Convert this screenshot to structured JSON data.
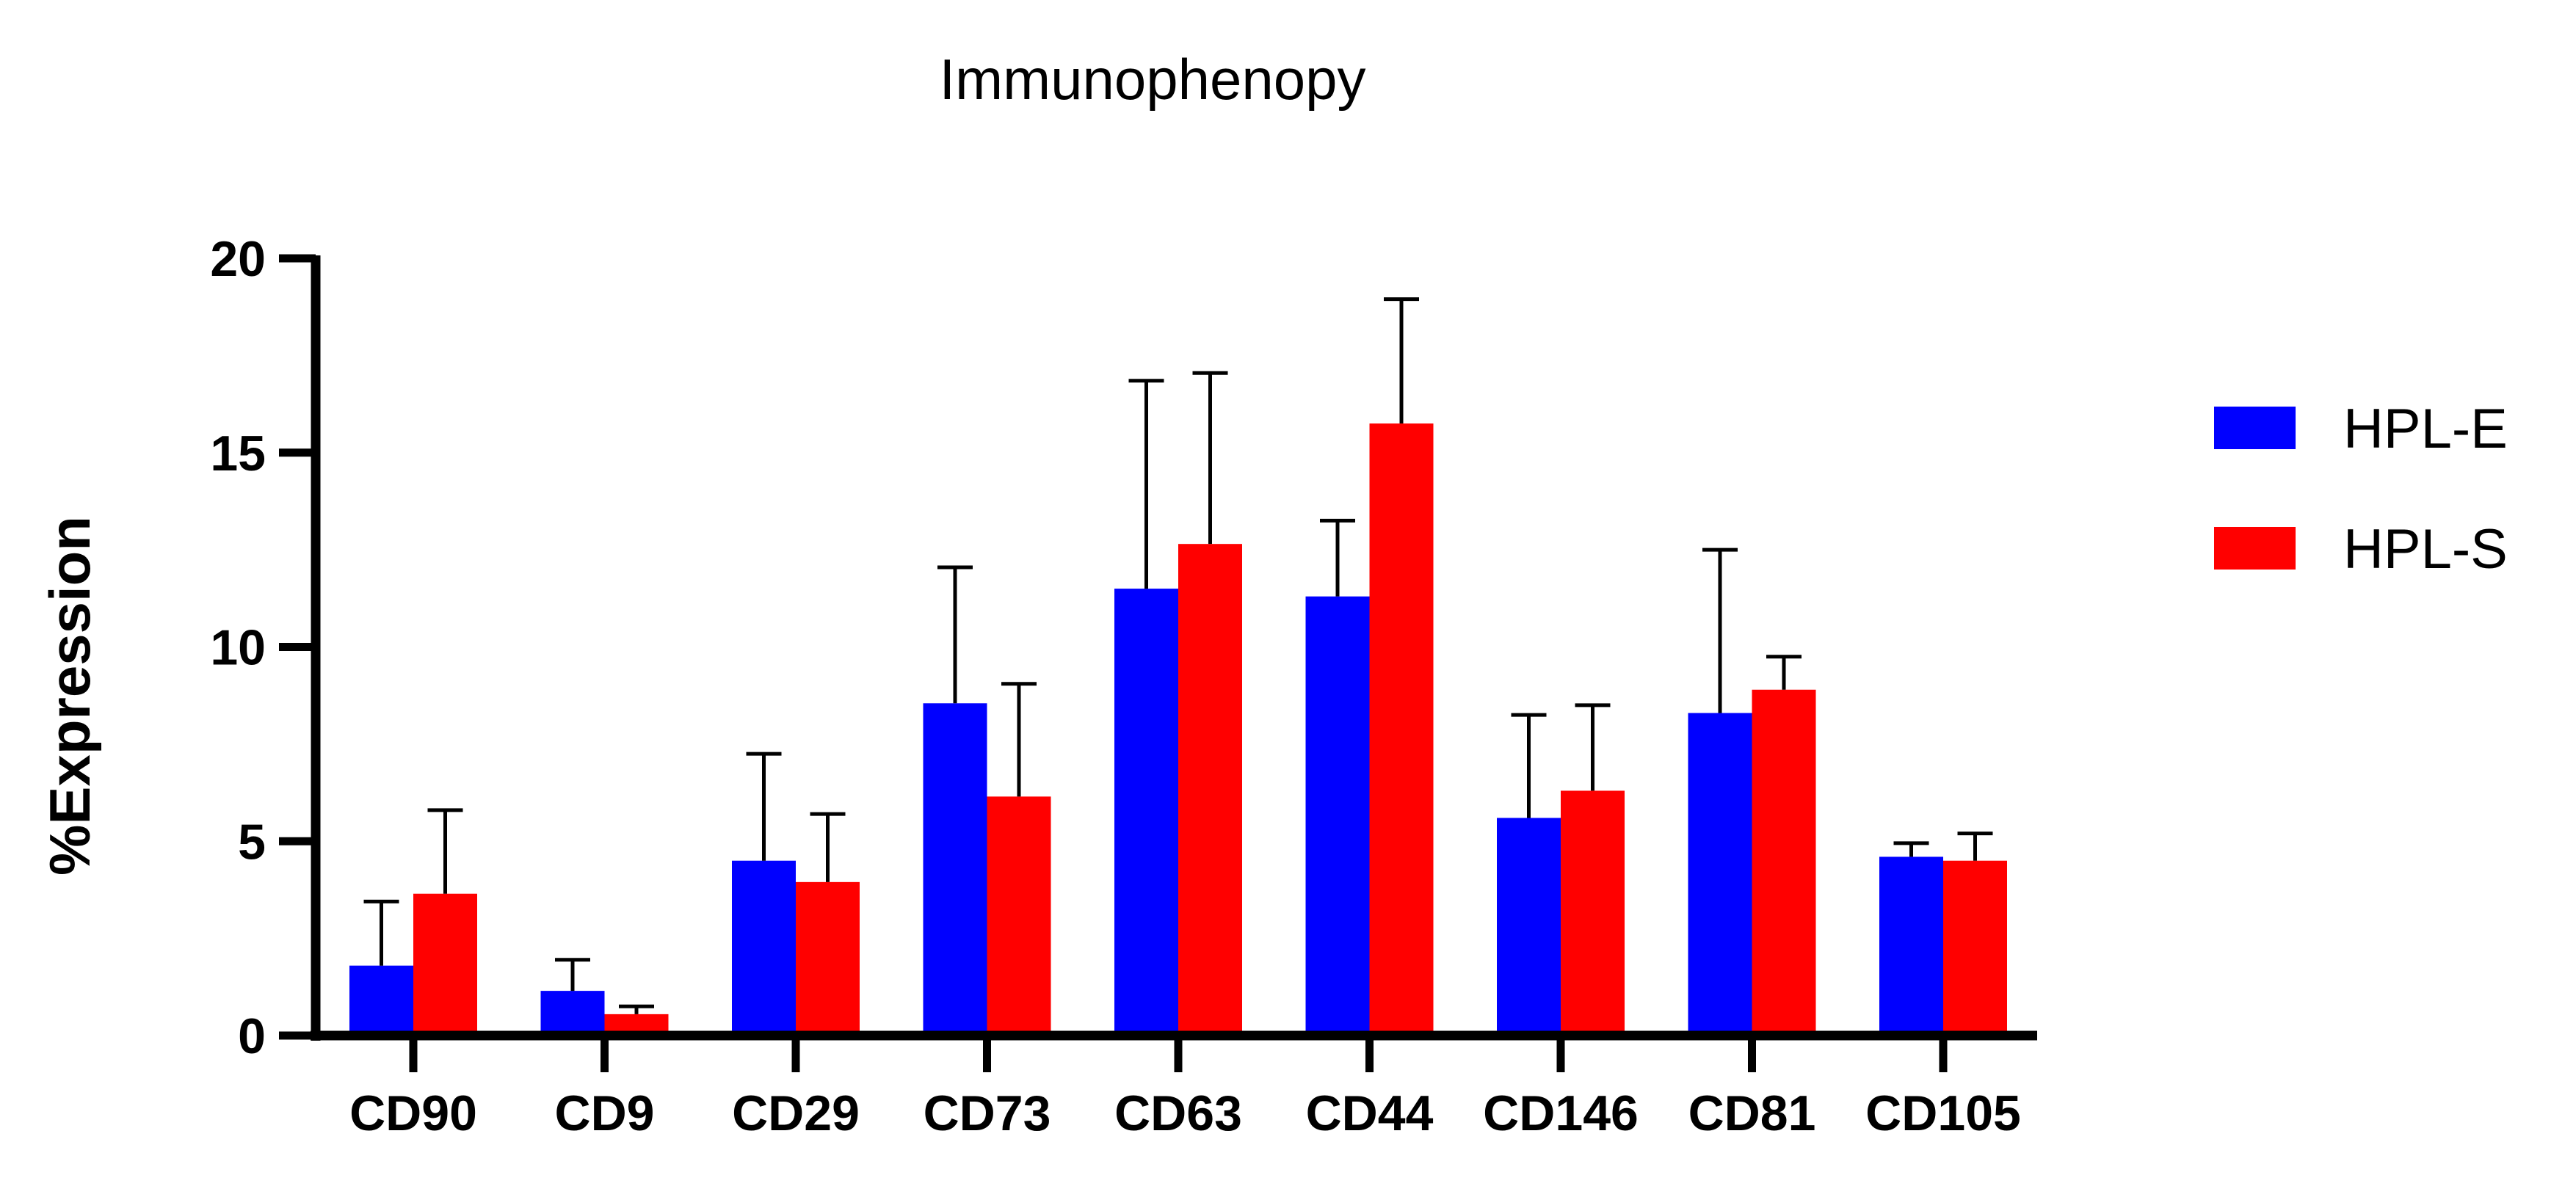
{
  "chart_data": {
    "type": "bar",
    "title": "Immunophenopy",
    "xlabel": "",
    "ylabel": "%Expression",
    "ylim": [
      0,
      20
    ],
    "yticks": [
      0,
      5,
      10,
      15,
      20
    ],
    "categories": [
      "CD90",
      "CD9",
      "CD29",
      "CD73",
      "CD63",
      "CD44",
      "CD146",
      "CD81",
      "CD105"
    ],
    "series": [
      {
        "name": "HPL-E",
        "color": "#0000ff",
        "values": [
          1.8,
          1.15,
          4.5,
          8.55,
          11.5,
          11.3,
          5.6,
          8.3,
          4.6
        ],
        "errors": [
          1.65,
          0.8,
          2.75,
          3.5,
          5.35,
          1.95,
          2.65,
          4.2,
          0.35
        ]
      },
      {
        "name": "HPL-S",
        "color": "#ff0000",
        "values": [
          3.65,
          0.55,
          3.95,
          6.15,
          12.65,
          15.75,
          6.3,
          8.9,
          4.5
        ],
        "errors": [
          2.15,
          0.2,
          1.75,
          2.9,
          4.4,
          3.2,
          2.2,
          0.85,
          0.7
        ]
      }
    ],
    "legend_position": "right",
    "grid": false
  }
}
